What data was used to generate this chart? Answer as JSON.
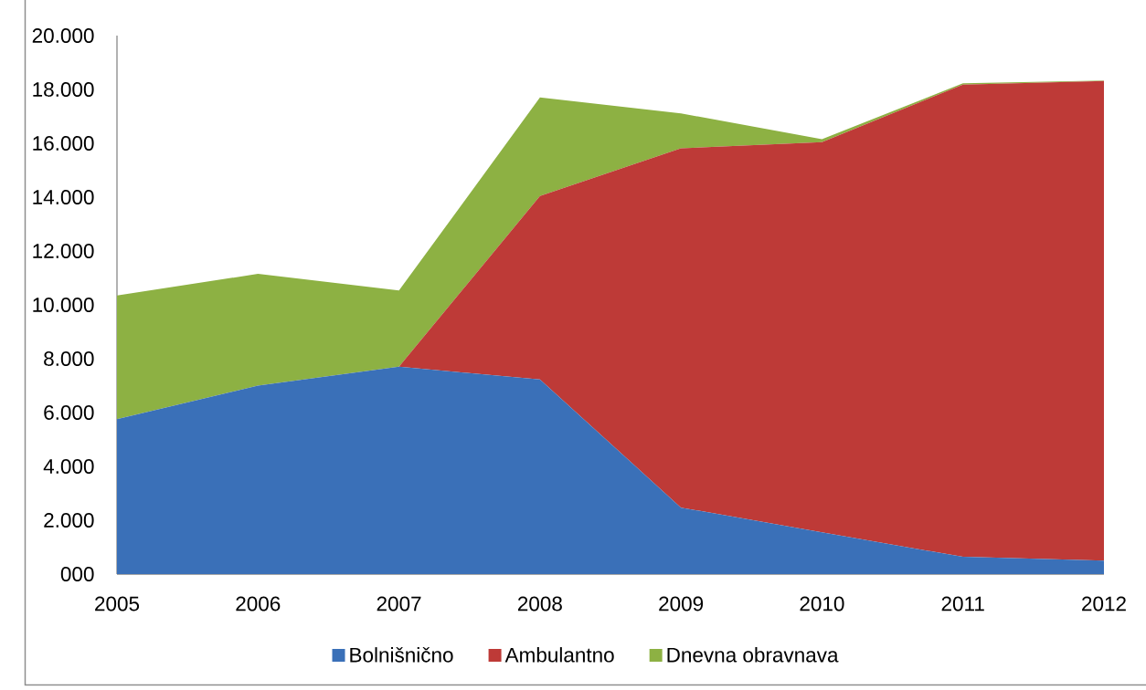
{
  "chart_data": {
    "type": "area",
    "stacked": true,
    "categories": [
      "2005",
      "2006",
      "2007",
      "2008",
      "2009",
      "2010",
      "2011",
      "2012"
    ],
    "series": [
      {
        "name": "Bolnišnično",
        "color": "#3a70b8",
        "values": [
          5750,
          7000,
          7700,
          7230,
          2470,
          1550,
          640,
          500
        ]
      },
      {
        "name": "Ambulantno",
        "color": "#be3a37",
        "values": [
          0,
          0,
          0,
          6810,
          13340,
          14490,
          17540,
          17810
        ]
      },
      {
        "name": "Dnevna obravnava",
        "color": "#8db143",
        "values": [
          4600,
          4150,
          2830,
          3660,
          1300,
          110,
          50,
          20
        ]
      }
    ],
    "ylim": [
      0,
      20000
    ],
    "yticks": [
      {
        "value": 0,
        "label": "000"
      },
      {
        "value": 2000,
        "label": "2.000"
      },
      {
        "value": 4000,
        "label": "4.000"
      },
      {
        "value": 6000,
        "label": "6.000"
      },
      {
        "value": 8000,
        "label": "8.000"
      },
      {
        "value": 10000,
        "label": "10.000"
      },
      {
        "value": 12000,
        "label": "12.000"
      },
      {
        "value": 14000,
        "label": "14.000"
      },
      {
        "value": 16000,
        "label": "16.000"
      },
      {
        "value": 18000,
        "label": "18.000"
      },
      {
        "value": 20000,
        "label": "20.000"
      }
    ],
    "legend": "bottom"
  }
}
